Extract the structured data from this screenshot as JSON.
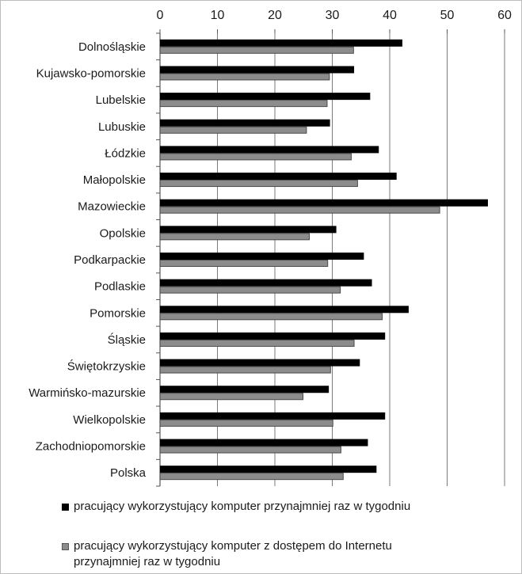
{
  "chart_data": {
    "type": "bar",
    "orientation": "horizontal",
    "categories": [
      "Dolnośląskie",
      "Kujawsko-pomorskie",
      "Lubelskie",
      "Lubuskie",
      "Łódzkie",
      "Małopolskie",
      "Mazowieckie",
      "Opolskie",
      "Podkarpackie",
      "Podlaskie",
      "Pomorskie",
      "Śląskie",
      "Świętokrzyskie",
      "Warmińsko-mazurskie",
      "Wielkopolskie",
      "Zachodniopomorskie",
      "Polska"
    ],
    "series": [
      {
        "name": "pracujący wykorzystujący komputer przynajmniej raz w tygodniu",
        "color": "#000000",
        "values": [
          42.2,
          33.8,
          36.6,
          29.6,
          38.1,
          41.2,
          57.1,
          30.7,
          35.5,
          36.9,
          43.3,
          39.2,
          34.8,
          29.4,
          39.2,
          36.2,
          37.7
        ]
      },
      {
        "name": "pracujący wykorzystujący komputer z dostępem do Internetu przynajmniej raz w tygodniu",
        "color": "#8c8c8c",
        "values": [
          33.7,
          29.5,
          29.1,
          25.5,
          33.3,
          34.4,
          48.7,
          26.0,
          29.2,
          31.4,
          38.7,
          33.8,
          29.7,
          24.9,
          30.1,
          31.5,
          31.9
        ]
      }
    ],
    "xlim": [
      0,
      60
    ],
    "xticks": [
      "0",
      "10",
      "20",
      "30",
      "40",
      "50",
      "60"
    ],
    "xaxis_position": "top",
    "grid": "vertical major gridlines",
    "legend_position": "bottom",
    "title": "",
    "xlabel": "",
    "ylabel": ""
  }
}
